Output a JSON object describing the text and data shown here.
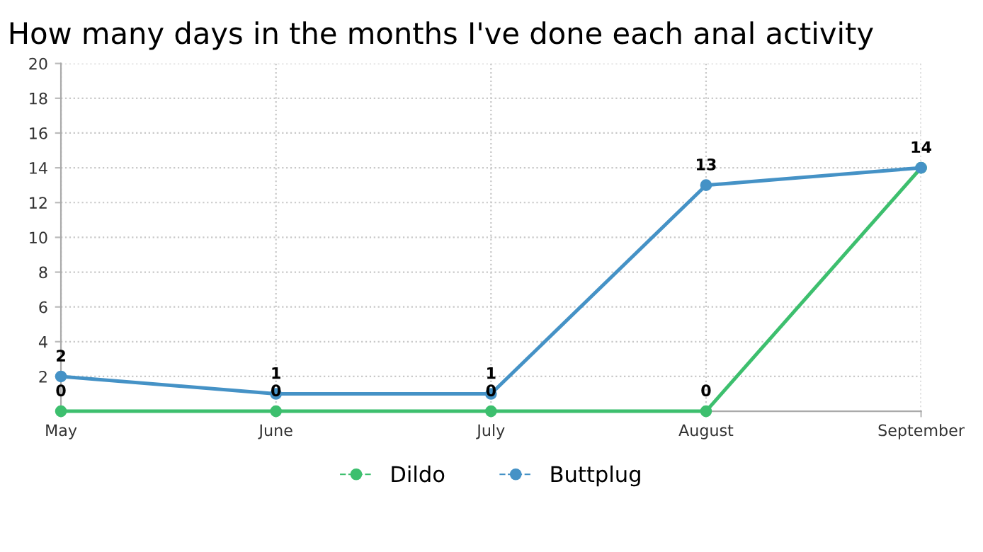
{
  "chart_data": {
    "type": "line",
    "title": "How many days in the months I've done each anal activity",
    "categories": [
      "May",
      "June",
      "July",
      "August",
      "September"
    ],
    "series": [
      {
        "name": "Dildo",
        "color": "#3dbf6e",
        "values": [
          0,
          0,
          0,
          0,
          14
        ],
        "value_labels": [
          "0",
          "0",
          "0",
          "0",
          "14"
        ]
      },
      {
        "name": "Buttplug",
        "color": "#4592c6",
        "values": [
          2,
          1,
          1,
          13,
          14
        ],
        "value_labels": [
          "2",
          "1",
          "1",
          "13",
          null
        ]
      }
    ],
    "ylim": [
      0,
      20
    ],
    "yticks": [
      2,
      4,
      6,
      8,
      10,
      12,
      14,
      16,
      18,
      20
    ],
    "grid": true,
    "legend": "bottom",
    "marker": "circle",
    "line_style": "solid"
  }
}
